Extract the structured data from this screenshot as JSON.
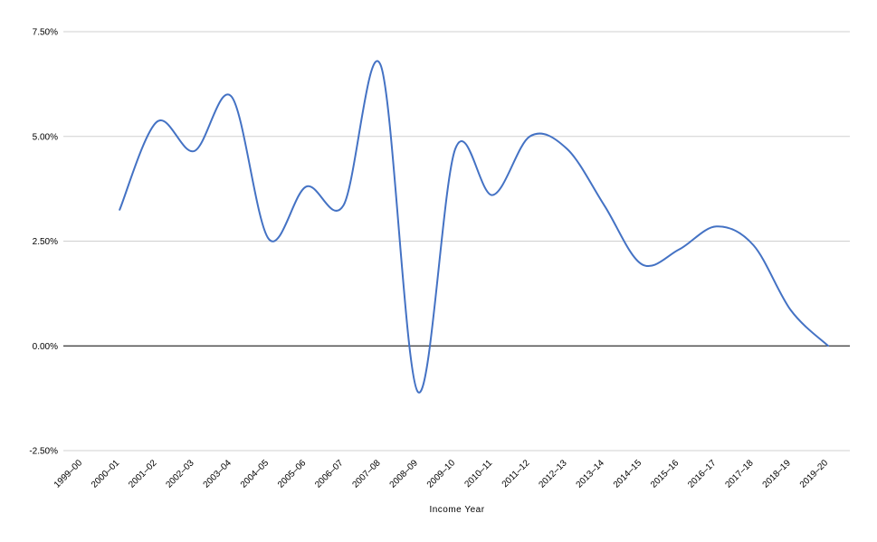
{
  "chart_data": {
    "type": "line",
    "title": "",
    "xlabel": "Income Year",
    "ylabel": "",
    "categories": [
      "1999–00",
      "2000–01",
      "2001–02",
      "2002–03",
      "2003–04",
      "2004–05",
      "2005–06",
      "2006–07",
      "2007–08",
      "2008–09",
      "2009–10",
      "2010–11",
      "2011–12",
      "2012–13",
      "2013–14",
      "2014–15",
      "2015–16",
      "2016–17",
      "2017–18",
      "2018–19",
      "2019–20"
    ],
    "series": [
      {
        "values": [
          null,
          3.25,
          5.35,
          4.65,
          5.95,
          2.55,
          3.8,
          3.35,
          6.7,
          -1.1,
          4.7,
          3.6,
          5.0,
          4.7,
          3.35,
          1.95,
          2.3,
          2.85,
          2.4,
          0.85,
          0.0
        ],
        "color": "#4472c4"
      }
    ],
    "yticks": [
      {
        "value": 7.5,
        "label": "7.50%"
      },
      {
        "value": 5.0,
        "label": "5.00%"
      },
      {
        "value": 2.5,
        "label": "2.50%"
      },
      {
        "value": 0.0,
        "label": "0.00%"
      },
      {
        "value": -2.5,
        "label": "-2.50%"
      }
    ],
    "ylim": [
      -2.5,
      7.5
    ],
    "grid": true,
    "legend": "none",
    "smooth": true,
    "colors": {
      "line": "#4472c4",
      "grid": "#d0d0d0",
      "zero_line": "#000000",
      "text": "#000000"
    }
  }
}
